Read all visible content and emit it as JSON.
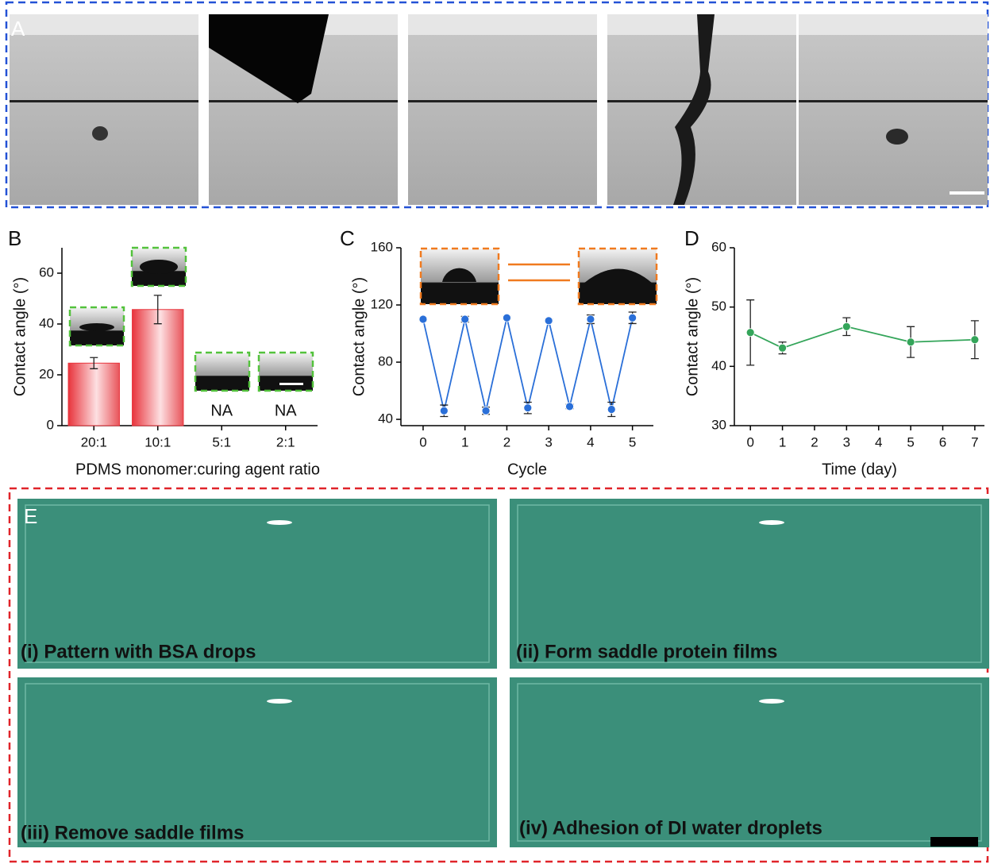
{
  "panels": {
    "A": "A",
    "E": "E"
  },
  "captions": [
    "(i) Pattern with BSA drops",
    "(ii) Form saddle protein films",
    "(iii) Remove saddle films",
    "(iv) Adhesion of DI water droplets"
  ],
  "chart_data": [
    {
      "type": "bar",
      "panel": "B",
      "categories": [
        "20:1",
        "10:1",
        "5:1",
        "2:1"
      ],
      "values": [
        24.6,
        45.7,
        null,
        null
      ],
      "errors": [
        2.2,
        5.6,
        null,
        null
      ],
      "value_labels": [
        null,
        null,
        "NA",
        "NA"
      ],
      "color": "#e8343c",
      "xlabel": "PDMS monomer:curing agent ratio",
      "ylabel": "Contact angle (°)",
      "ylim": [
        0,
        70
      ],
      "yticks": [
        0,
        20,
        40,
        60
      ]
    },
    {
      "type": "line",
      "panel": "C",
      "x": [
        0,
        0.5,
        1,
        1.5,
        2,
        2.5,
        3,
        3.5,
        4,
        4.5,
        5
      ],
      "values": [
        110,
        46,
        110,
        46,
        111,
        48,
        109,
        49,
        110,
        47,
        111
      ],
      "errors": [
        1,
        4,
        2,
        2.5,
        1,
        4,
        1,
        1.5,
        3,
        5,
        4
      ],
      "color": "#2a6fd8",
      "xlabel": "Cycle",
      "ylabel": "Contact angle (°)",
      "xlim": [
        -0.53,
        5.5
      ],
      "xticks": [
        0,
        1,
        2,
        3,
        4,
        5
      ],
      "ylim": [
        35.6,
        160
      ],
      "yticks": [
        40,
        80,
        120,
        160
      ]
    },
    {
      "type": "line",
      "panel": "D",
      "x": [
        0,
        1,
        3,
        5,
        7
      ],
      "values": [
        45.7,
        43.1,
        46.7,
        44.1,
        44.5
      ],
      "errors": [
        5.5,
        1,
        1.5,
        2.6,
        3.2
      ],
      "color": "#34a55a",
      "xlabel": "Time (day)",
      "ylabel": "Contact angle (°)",
      "xlim": [
        -0.5,
        7.3
      ],
      "xticks": [
        0,
        1,
        2,
        3,
        4,
        5,
        6,
        7
      ],
      "ylim": [
        30,
        60
      ],
      "yticks": [
        30,
        40,
        50,
        60
      ]
    }
  ]
}
